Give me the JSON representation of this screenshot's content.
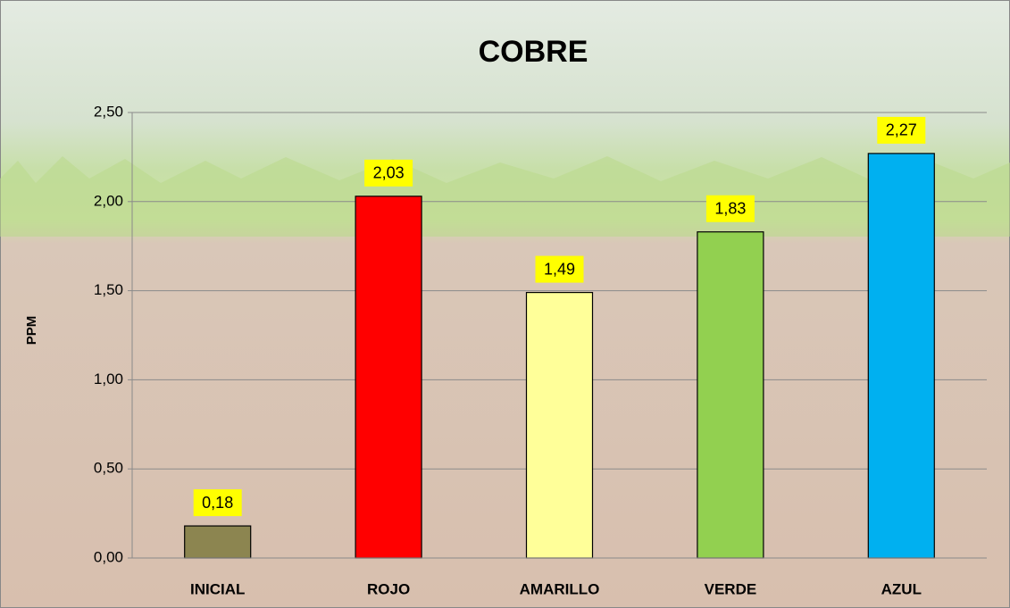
{
  "chart_data": {
    "type": "bar",
    "title": "COBRE",
    "y_label": "PPM",
    "categories": [
      "INICIAL",
      "ROJO",
      "AMARILLO",
      "VERDE",
      "AZUL"
    ],
    "values": [
      0.18,
      2.03,
      1.49,
      1.83,
      2.27
    ],
    "value_labels": [
      "0,18",
      "2,03",
      "1,49",
      "1,83",
      "2,27"
    ],
    "colors": [
      "#8c8550",
      "#ff0000",
      "#ffff99",
      "#92d050",
      "#00b0f0"
    ],
    "ylim": [
      0,
      2.5
    ],
    "yticks": [
      {
        "value": 0,
        "label": "0,00"
      },
      {
        "value": 0.5,
        "label": "0,50"
      },
      {
        "value": 1,
        "label": "1,00"
      },
      {
        "value": 1.5,
        "label": "1,50"
      },
      {
        "value": 2,
        "label": "2,00"
      },
      {
        "value": 2.5,
        "label": "2,50"
      }
    ],
    "grid": true
  }
}
